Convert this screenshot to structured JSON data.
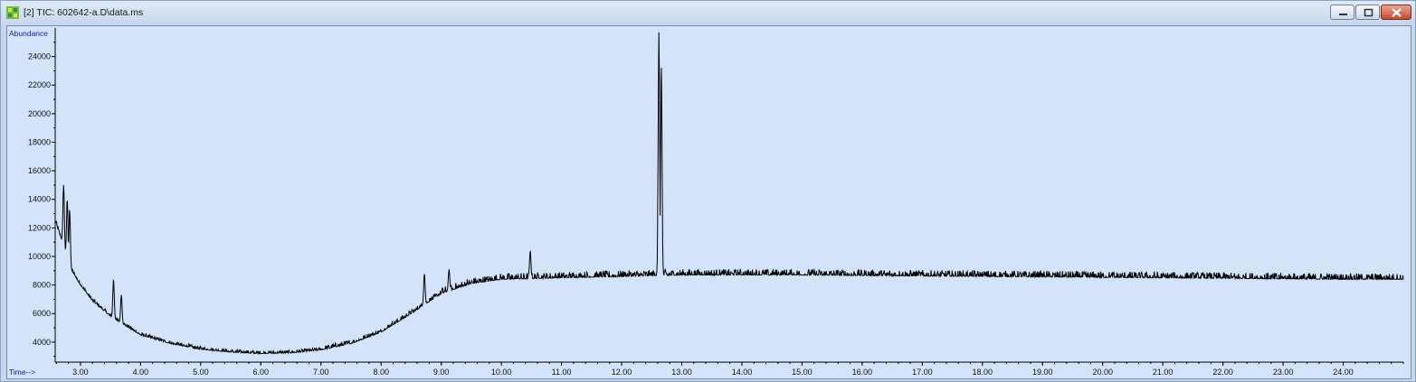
{
  "window": {
    "title": "[2] TIC: 602642-a.D\\data.ms",
    "icon": "chromatogram-app-icon",
    "controls": [
      "minimize",
      "maximize",
      "close"
    ]
  },
  "chart_data": {
    "type": "line",
    "title": "",
    "xlabel": "Time-->",
    "ylabel": "Abundance",
    "xlim": [
      2.58,
      25.0
    ],
    "ylim": [
      2600,
      26000
    ],
    "grid": false,
    "legend": "none",
    "x_ticks": [
      "3.00",
      "4.00",
      "5.00",
      "6.00",
      "7.00",
      "8.00",
      "9.00",
      "10.00",
      "11.00",
      "12.00",
      "13.00",
      "14.00",
      "15.00",
      "16.00",
      "17.00",
      "18.00",
      "19.00",
      "20.00",
      "21.00",
      "22.00",
      "23.00",
      "24.00"
    ],
    "y_ticks": [
      "4000",
      "6000",
      "8000",
      "10000",
      "12000",
      "14000",
      "16000",
      "18000",
      "20000",
      "22000",
      "24000"
    ],
    "series": [
      {
        "color": "#000000",
        "baseline_points": [
          [
            2.58,
            12500
          ],
          [
            2.7,
            11000
          ],
          [
            2.8,
            9400
          ],
          [
            3.0,
            8000
          ],
          [
            3.2,
            6900
          ],
          [
            3.5,
            5800
          ],
          [
            4.0,
            4500
          ],
          [
            4.5,
            3900
          ],
          [
            5.0,
            3500
          ],
          [
            5.5,
            3300
          ],
          [
            6.0,
            3200
          ],
          [
            6.5,
            3250
          ],
          [
            7.0,
            3450
          ],
          [
            7.5,
            3900
          ],
          [
            8.0,
            4700
          ],
          [
            8.5,
            6000
          ],
          [
            9.0,
            7400
          ],
          [
            9.5,
            8100
          ],
          [
            10.0,
            8400
          ],
          [
            11.0,
            8500
          ],
          [
            12.0,
            8600
          ],
          [
            13.0,
            8700
          ],
          [
            15.0,
            8700
          ],
          [
            18.0,
            8600
          ],
          [
            21.0,
            8500
          ],
          [
            24.0,
            8400
          ],
          [
            25.0,
            8400
          ]
        ],
        "peaks": [
          [
            2.72,
            15000
          ],
          [
            2.78,
            14000
          ],
          [
            2.82,
            13300
          ],
          [
            3.55,
            8400
          ],
          [
            3.68,
            7300
          ],
          [
            8.72,
            8800
          ],
          [
            9.13,
            9100
          ],
          [
            10.48,
            10400
          ],
          [
            12.62,
            25700
          ],
          [
            12.66,
            23400
          ]
        ]
      }
    ]
  }
}
